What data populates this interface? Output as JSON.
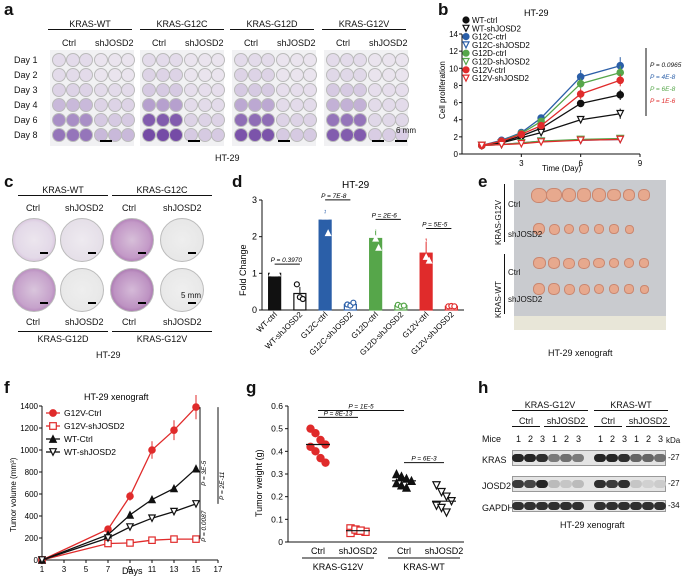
{
  "panels": {
    "a": "a",
    "b": "b",
    "c": "c",
    "d": "d",
    "e": "e",
    "f": "f",
    "g": "g",
    "h": "h"
  },
  "panel_a": {
    "groups": [
      "KRAS-WT",
      "KRAS-G12C",
      "KRAS-G12D",
      "KRAS-G12V"
    ],
    "conditions": [
      "Ctrl",
      "shJOSD2"
    ],
    "days": [
      "Day 1",
      "Day 2",
      "Day 3",
      "Day 4",
      "Day 6",
      "Day 8"
    ],
    "scale": "6 mm",
    "cell_line": "HT-29"
  },
  "panel_c": {
    "top_groups": [
      "KRAS-WT",
      "KRAS-G12C"
    ],
    "bottom_groups": [
      "KRAS-G12D",
      "KRAS-G12V"
    ],
    "conditions": [
      "Ctrl",
      "shJOSD2"
    ],
    "scale": "5 mm",
    "cell_line": "HT-29"
  },
  "panel_e": {
    "groups": [
      "KRAS-G12V",
      "KRAS-WT"
    ],
    "conditions": [
      "Ctrl",
      "shJOSD2"
    ],
    "caption": "HT-29 xenograft"
  },
  "panel_h": {
    "groups": [
      "KRAS-G12V",
      "KRAS-WT"
    ],
    "conditions": [
      "Ctrl",
      "shJOSD2"
    ],
    "mice_label": "Mice",
    "mice": [
      "1",
      "2",
      "3"
    ],
    "kda": "kDa",
    "rows": [
      "KRAS",
      "JOSD2",
      "GAPDH"
    ],
    "markers": [
      "-27",
      "-27",
      "-34"
    ],
    "caption": "HT-29 xenograft"
  },
  "chart_data": [
    {
      "id": "b",
      "type": "line",
      "title": "HT-29",
      "xlabel": "Time (Day)",
      "ylabel": "Cell proliferation",
      "x": [
        1,
        2,
        3,
        4,
        6,
        8
      ],
      "xticks": [
        3,
        6,
        9
      ],
      "yticks": [
        0,
        2,
        4,
        6,
        8,
        10,
        12,
        14
      ],
      "xlim": [
        0,
        9
      ],
      "ylim": [
        0,
        14
      ],
      "series": [
        {
          "name": "WT-ctrl",
          "color": "#111111",
          "marker": "circle",
          "filled": true,
          "values": [
            1,
            1.4,
            2.1,
            3.0,
            5.9,
            6.9
          ],
          "err": [
            0,
            0.1,
            0.1,
            0.2,
            0.4,
            0.6
          ]
        },
        {
          "name": "WT-shJOSD2",
          "color": "#111111",
          "marker": "tri-down",
          "filled": false,
          "values": [
            1,
            1.3,
            1.9,
            2.5,
            4.0,
            4.7
          ],
          "err": [
            0,
            0.1,
            0.1,
            0.2,
            0.4,
            0.6
          ]
        },
        {
          "name": "G12C-ctrl",
          "color": "#2b5fa8",
          "marker": "circle",
          "filled": true,
          "values": [
            1,
            1.6,
            2.5,
            4.2,
            9.0,
            10.3
          ],
          "err": [
            0,
            0.1,
            0.2,
            0.3,
            0.8,
            1.0
          ]
        },
        {
          "name": "G12C-shJOSD2",
          "color": "#2b5fa8",
          "marker": "tri-down",
          "filled": false,
          "values": [
            1,
            1.1,
            1.3,
            1.5,
            1.6,
            1.7
          ],
          "err": [
            0,
            0.05,
            0.1,
            0.1,
            0.1,
            0.1
          ]
        },
        {
          "name": "G12D-ctrl",
          "color": "#56a64a",
          "marker": "circle",
          "filled": true,
          "values": [
            1,
            1.5,
            2.4,
            3.8,
            8.2,
            9.5
          ],
          "err": [
            0,
            0.1,
            0.2,
            0.3,
            0.6,
            0.8
          ]
        },
        {
          "name": "G12D-shJOSD2",
          "color": "#56a64a",
          "marker": "tri-down",
          "filled": false,
          "values": [
            1,
            1.1,
            1.3,
            1.5,
            1.7,
            1.8
          ],
          "err": [
            0,
            0.05,
            0.1,
            0.1,
            0.1,
            0.1
          ]
        },
        {
          "name": "G12V-ctrl",
          "color": "#e02b2b",
          "marker": "circle",
          "filled": true,
          "values": [
            1,
            1.5,
            2.3,
            3.3,
            7.0,
            8.6
          ],
          "err": [
            0,
            0.1,
            0.2,
            0.3,
            0.6,
            0.7
          ]
        },
        {
          "name": "G12V-shJOSD2",
          "color": "#e02b2b",
          "marker": "tri-down",
          "filled": false,
          "values": [
            1,
            1.1,
            1.2,
            1.4,
            1.6,
            1.7
          ],
          "err": [
            0,
            0.05,
            0.1,
            0.1,
            0.1,
            0.1
          ]
        }
      ],
      "pvalues": [
        {
          "text": "P = 0.0965",
          "color": "#111111"
        },
        {
          "text": "P = 4E-8",
          "color": "#2b5fa8"
        },
        {
          "text": "P = 6E-8",
          "color": "#56a64a"
        },
        {
          "text": "P = 1E-6",
          "color": "#e02b2b"
        }
      ]
    },
    {
      "id": "d",
      "type": "bar",
      "title": "HT-29",
      "ylabel": "Fold Change",
      "ylim": [
        0,
        3
      ],
      "yticks": [
        0,
        1,
        2,
        3
      ],
      "categories": [
        "WT-ctrl",
        "WT-shJOSD2",
        "G12C-ctrl",
        "G12C-shJOSD2",
        "G12D-ctrl",
        "G12D-shJOSD2",
        "G12V-ctrl",
        "G12V-shJOSD2"
      ],
      "values": [
        1.0,
        0.45,
        2.45,
        0.15,
        1.95,
        0.12,
        1.55,
        0.1
      ],
      "err": [
        0.02,
        0.18,
        0.28,
        0.05,
        0.25,
        0.04,
        0.4,
        0.02
      ],
      "colors": [
        "#111111",
        "#111111",
        "#2b5fa8",
        "#2b5fa8",
        "#56a64a",
        "#56a64a",
        "#e02b2b",
        "#e02b2b"
      ],
      "filled": [
        true,
        false,
        true,
        false,
        true,
        false,
        true,
        false
      ],
      "points": [
        [
          1,
          1,
          1
        ],
        [
          0.7,
          0.35,
          0.3
        ],
        [
          2.75,
          2.55,
          2.1
        ],
        [
          0.15,
          0.12,
          0.2
        ],
        [
          2.25,
          1.95,
          1.7
        ],
        [
          0.14,
          0.1,
          0.12
        ],
        [
          1.95,
          1.45,
          1.35
        ],
        [
          0.1,
          0.11,
          0.1
        ]
      ],
      "pvalues": [
        {
          "text": "P = 0.3970",
          "pair": [
            0,
            1
          ]
        },
        {
          "text": "P = 7E-8",
          "pair": [
            2,
            3
          ]
        },
        {
          "text": "P = 2E-6",
          "pair": [
            4,
            5
          ]
        },
        {
          "text": "P = 5E-5",
          "pair": [
            6,
            7
          ]
        }
      ]
    },
    {
      "id": "f",
      "type": "line",
      "title": "HT-29 xenograft",
      "xlabel": "Days",
      "ylabel": "Tumor volume (mm³)",
      "x": [
        1,
        7,
        9,
        11,
        13,
        15
      ],
      "xticks": [
        1,
        3,
        5,
        7,
        9,
        11,
        13,
        15,
        17
      ],
      "yticks": [
        0,
        200,
        400,
        600,
        800,
        1000,
        1200,
        1400
      ],
      "xlim": [
        1,
        17
      ],
      "ylim": [
        0,
        1400
      ],
      "series": [
        {
          "name": "G12V-Ctrl",
          "color": "#e02b2b",
          "marker": "circle",
          "filled": true,
          "values": [
            0,
            280,
            580,
            1000,
            1180,
            1390
          ],
          "err": [
            0,
            30,
            40,
            80,
            90,
            110
          ]
        },
        {
          "name": "G12V-shJOSD2",
          "color": "#e02b2b",
          "marker": "square",
          "filled": false,
          "values": [
            0,
            150,
            155,
            180,
            190,
            190
          ],
          "err": [
            0,
            10,
            10,
            10,
            10,
            10
          ]
        },
        {
          "name": "WT-Ctrl",
          "color": "#111111",
          "marker": "tri-up",
          "filled": true,
          "values": [
            0,
            230,
            410,
            550,
            650,
            830
          ],
          "err": [
            0,
            20,
            20,
            25,
            25,
            25
          ]
        },
        {
          "name": "WT-shJOSD2",
          "color": "#111111",
          "marker": "tri-down",
          "filled": false,
          "values": [
            0,
            200,
            300,
            380,
            440,
            510
          ],
          "err": [
            0,
            15,
            20,
            20,
            25,
            25
          ]
        }
      ],
      "pvalues": [
        {
          "text": "P = 3E-5"
        },
        {
          "text": "P = 0.0087"
        },
        {
          "text": "P = 2E-11"
        }
      ]
    },
    {
      "id": "g",
      "type": "scatter",
      "ylabel": "Tumor weight (g)",
      "ylim": [
        0,
        0.6
      ],
      "yticks": [
        0,
        0.1,
        0.2,
        0.3,
        0.4,
        0.5,
        0.6
      ],
      "categories": [
        "Ctrl",
        "shJOSD2",
        "Ctrl",
        "shJOSD2"
      ],
      "group_labels": [
        "KRAS-G12V",
        "KRAS-WT"
      ],
      "colors": [
        "#e02b2b",
        "#e02b2b",
        "#111111",
        "#111111"
      ],
      "markers": [
        "circle",
        "square",
        "tri-up",
        "tri-down"
      ],
      "filled": [
        true,
        false,
        true,
        false
      ],
      "means": [
        0.43,
        0.05,
        0.27,
        0.18
      ],
      "points": [
        [
          0.5,
          0.48,
          0.45,
          0.43,
          0.42,
          0.4,
          0.37,
          0.35
        ],
        [
          0.06,
          0.05,
          0.05,
          0.045,
          0.04,
          0.055,
          0.05
        ],
        [
          0.3,
          0.29,
          0.28,
          0.27,
          0.26,
          0.25,
          0.24
        ],
        [
          0.25,
          0.22,
          0.2,
          0.18,
          0.16,
          0.15,
          0.13
        ]
      ],
      "pvalues": [
        {
          "text": "P = 1E-5",
          "pair": [
            0,
            2
          ]
        },
        {
          "text": "P = 8E-13",
          "pair": [
            0,
            1
          ]
        },
        {
          "text": "P = 6E-3",
          "pair": [
            2,
            3
          ]
        }
      ]
    }
  ]
}
